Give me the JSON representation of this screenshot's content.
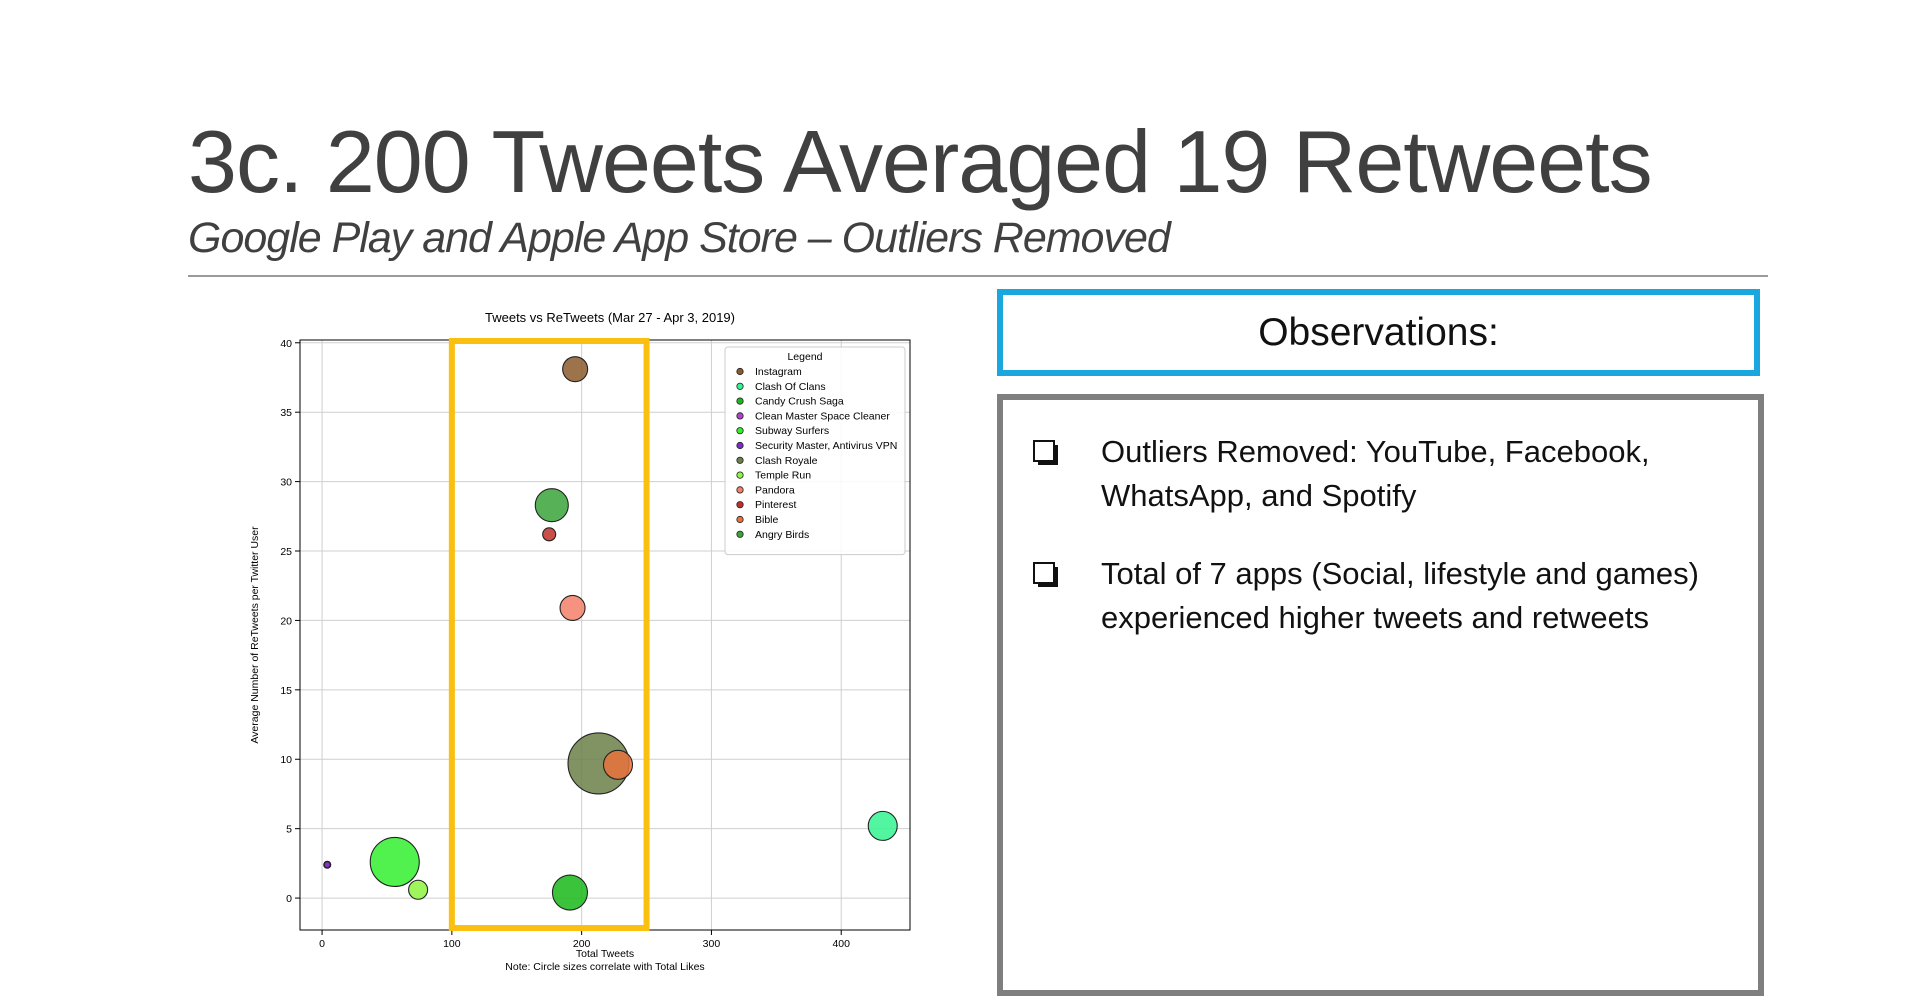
{
  "slide": {
    "title": "3c. 200 Tweets Averaged 19 Retweets",
    "subtitle": "Google Play and Apple App Store – Outliers Removed"
  },
  "observations": {
    "heading": "Observations:",
    "bullets": [
      {
        "text": "Outliers Removed: YouTube, Facebook, WhatsApp, and Spotify",
        "icon": "checkbox-bullet-icon"
      },
      {
        "text": "Total of 7 apps (Social, lifestyle and games) experienced higher tweets and retweets",
        "icon": "checkbox-bullet-icon"
      }
    ]
  },
  "chart_data": {
    "type": "scatter",
    "title": "Tweets vs ReTweets (Mar 27 - Apr 3, 2019)",
    "xlabel": "Total Tweets",
    "ylabel": "Average Number of ReTweets per Twitter User",
    "note": "Note: Circle sizes correlate with Total Likes",
    "xlim": [
      -17,
      453
    ],
    "ylim": [
      -2.3,
      40.2
    ],
    "x_ticks": [
      0,
      100,
      200,
      300,
      400
    ],
    "y_ticks": [
      0,
      5,
      10,
      15,
      20,
      25,
      30,
      35,
      40
    ],
    "grid": true,
    "legend_title": "Legend",
    "legend_position": "top-right",
    "highlight": {
      "x_range": [
        100,
        250
      ],
      "color": "#fbbf0f"
    },
    "series": [
      {
        "name": "Instagram",
        "color": "#8b5a2b",
        "x": 195,
        "y": 38.1,
        "size": 11
      },
      {
        "name": "Clash Of Clans",
        "color": "#34f591",
        "x": 432,
        "y": 5.2,
        "size": 13
      },
      {
        "name": "Candy Crush Saga",
        "color": "#1ab81a",
        "x": 191,
        "y": 0.4,
        "size": 16
      },
      {
        "name": "Clean Master Space Cleaner",
        "color": "#b041c9",
        "x": 4,
        "y": 2.4,
        "size": 2
      },
      {
        "name": "Subway Surfers",
        "color": "#32f02e",
        "x": 56,
        "y": 2.6,
        "size": 23
      },
      {
        "name": "Security Master, Antivirus VPN",
        "color": "#7b2cc9",
        "x": 4,
        "y": 2.4,
        "size": 1.5
      },
      {
        "name": "Clash Royale",
        "color": "#6b7f48",
        "x": 213,
        "y": 9.7,
        "size": 29
      },
      {
        "name": "Temple Run",
        "color": "#8ef540",
        "x": 74,
        "y": 0.6,
        "size": 8
      },
      {
        "name": "Pandora",
        "color": "#f47f6a",
        "x": 193,
        "y": 20.9,
        "size": 11
      },
      {
        "name": "Pinterest",
        "color": "#c0302a",
        "x": 175,
        "y": 26.2,
        "size": 5
      },
      {
        "name": "Bible",
        "color": "#e7723b",
        "x": 228,
        "y": 9.6,
        "size": 13
      },
      {
        "name": "Angry Birds",
        "color": "#3aa53a",
        "x": 177,
        "y": 28.3,
        "size": 15
      }
    ]
  }
}
